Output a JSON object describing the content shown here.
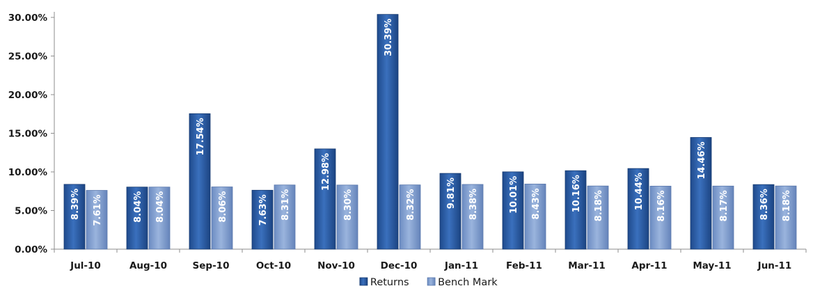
{
  "chart_data": {
    "type": "bar",
    "title": "",
    "xlabel": "",
    "ylabel": "",
    "ylim": [
      0,
      30
    ],
    "yticks": [
      "0.00%",
      "5.00%",
      "10.00%",
      "15.00%",
      "20.00%",
      "25.00%",
      "30.00%"
    ],
    "categories": [
      "Jul-10",
      "Aug-10",
      "Sep-10",
      "Oct-10",
      "Nov-10",
      "Dec-10",
      "Jan-11",
      "Feb-11",
      "Mar-11",
      "Apr-11",
      "May-11",
      "Jun-11"
    ],
    "series": [
      {
        "name": "Returns",
        "color": "#2b5ea9",
        "values": [
          8.39,
          8.04,
          17.54,
          7.63,
          12.98,
          30.39,
          9.81,
          10.01,
          10.16,
          10.44,
          14.46,
          8.36
        ],
        "labels": [
          "8.39%",
          "8.04%",
          "17.54%",
          "7.63%",
          "12.98%",
          "30.39%",
          "9.81%",
          "10.01%",
          "10.16%",
          "10.44%",
          "14.46%",
          "8.36%"
        ]
      },
      {
        "name": "Bench Mark",
        "color": "#7f9fd0",
        "values": [
          7.61,
          8.04,
          8.06,
          8.31,
          8.3,
          8.32,
          8.38,
          8.43,
          8.18,
          8.16,
          8.17,
          8.18
        ],
        "labels": [
          "7.61%",
          "8.04%",
          "8.06%",
          "8.31%",
          "8.30%",
          "8.32%",
          "8.38%",
          "8.43%",
          "8.18%",
          "8.16%",
          "8.17%",
          "8.18%"
        ]
      }
    ],
    "grid": false,
    "legend": "bottom"
  }
}
